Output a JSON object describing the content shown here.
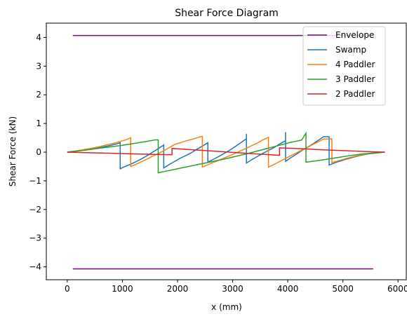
{
  "chart_data": {
    "type": "line",
    "title": "Shear Force Diagram",
    "xlabel": "x (mm)",
    "ylabel": "Shear Force (kN)",
    "xlim": [
      -380,
      6150
    ],
    "ylim": [
      -4.45,
      4.5
    ],
    "x_ticks": [
      0,
      1000,
      2000,
      3000,
      4000,
      5000,
      6000
    ],
    "x_tick_labels": [
      "0",
      "1000",
      "2000",
      "3000",
      "4000",
      "5000",
      "6000"
    ],
    "y_ticks": [
      -4,
      -3,
      -2,
      -1,
      0,
      1,
      2,
      3,
      4
    ],
    "y_tick_labels": [
      "−4",
      "−3",
      "−2",
      "−1",
      "0",
      "1",
      "2",
      "3",
      "4"
    ],
    "grid": false,
    "legend_position": "top-right",
    "series": [
      {
        "name": "Envelope",
        "color": "#800080",
        "segments": [
          [
            [
              100,
              4.07
            ],
            [
              5550,
              4.07
            ]
          ],
          [
            [
              100,
              -4.07
            ],
            [
              5550,
              -4.07
            ]
          ]
        ]
      },
      {
        "name": "Swamp",
        "color": "#1f77b4",
        "points": [
          [
            0,
            0
          ],
          [
            150,
            0.03
          ],
          [
            300,
            0.07
          ],
          [
            450,
            0.11
          ],
          [
            600,
            0.16
          ],
          [
            750,
            0.22
          ],
          [
            900,
            0.29
          ],
          [
            960,
            0.33
          ],
          [
            960,
            -0.58
          ],
          [
            1050,
            -0.5
          ],
          [
            1150,
            -0.42
          ],
          [
            1250,
            -0.33
          ],
          [
            1350,
            -0.23
          ],
          [
            1450,
            -0.12
          ],
          [
            1550,
            0
          ],
          [
            1650,
            0.12
          ],
          [
            1750,
            0.25
          ],
          [
            1750,
            -0.55
          ],
          [
            1850,
            -0.43
          ],
          [
            1950,
            -0.32
          ],
          [
            2050,
            -0.21
          ],
          [
            2150,
            -0.12
          ],
          [
            2250,
            -0.02
          ],
          [
            2350,
            0.1
          ],
          [
            2450,
            0.21
          ],
          [
            2550,
            0.33
          ],
          [
            2550,
            -0.35
          ],
          [
            2650,
            -0.25
          ],
          [
            2750,
            -0.15
          ],
          [
            2850,
            -0.04
          ],
          [
            2950,
            0.07
          ],
          [
            3050,
            0.2
          ],
          [
            3150,
            0.33
          ],
          [
            3250,
            0.47
          ],
          [
            3250,
            0.64
          ],
          [
            3250,
            -0.38
          ],
          [
            3350,
            -0.26
          ],
          [
            3450,
            -0.15
          ],
          [
            3550,
            -0.04
          ],
          [
            3650,
            0.06
          ],
          [
            3750,
            0.16
          ],
          [
            3850,
            0.28
          ],
          [
            3960,
            0.4
          ],
          [
            3960,
            0.7
          ],
          [
            3960,
            -0.32
          ],
          [
            4050,
            -0.2
          ],
          [
            4150,
            -0.08
          ],
          [
            4250,
            0.05
          ],
          [
            4350,
            0.16
          ],
          [
            4450,
            0.28
          ],
          [
            4550,
            0.41
          ],
          [
            4650,
            0.54
          ],
          [
            4750,
            0.54
          ],
          [
            4750,
            -0.45
          ],
          [
            4900,
            -0.34
          ],
          [
            5050,
            -0.25
          ],
          [
            5200,
            -0.17
          ],
          [
            5350,
            -0.1
          ],
          [
            5500,
            -0.05
          ],
          [
            5650,
            -0.02
          ],
          [
            5760,
            0
          ]
        ]
      },
      {
        "name": "4 Paddler",
        "color": "#ff7f0e",
        "points": [
          [
            0,
            0
          ],
          [
            150,
            0.04
          ],
          [
            300,
            0.09
          ],
          [
            450,
            0.14
          ],
          [
            600,
            0.2
          ],
          [
            750,
            0.27
          ],
          [
            900,
            0.34
          ],
          [
            1050,
            0.42
          ],
          [
            1150,
            0.5
          ],
          [
            1150,
            -0.5
          ],
          [
            1250,
            -0.42
          ],
          [
            1350,
            -0.33
          ],
          [
            1450,
            -0.24
          ],
          [
            1550,
            -0.14
          ],
          [
            1650,
            -0.05
          ],
          [
            1750,
            0.05
          ],
          [
            1850,
            0.16
          ],
          [
            1950,
            0.27
          ],
          [
            2050,
            0.33
          ],
          [
            2150,
            0.39
          ],
          [
            2250,
            0.44
          ],
          [
            2350,
            0.5
          ],
          [
            2450,
            0.55
          ],
          [
            2450,
            -0.52
          ],
          [
            2550,
            -0.44
          ],
          [
            2650,
            -0.36
          ],
          [
            2750,
            -0.28
          ],
          [
            2850,
            -0.2
          ],
          [
            2950,
            -0.12
          ],
          [
            3050,
            -0.04
          ],
          [
            3150,
            0.05
          ],
          [
            3250,
            0.14
          ],
          [
            3350,
            0.23
          ],
          [
            3450,
            0.32
          ],
          [
            3550,
            0.43
          ],
          [
            3650,
            0.52
          ],
          [
            3650,
            -0.52
          ],
          [
            3750,
            -0.43
          ],
          [
            3850,
            -0.33
          ],
          [
            3950,
            -0.23
          ],
          [
            4050,
            -0.13
          ],
          [
            4150,
            -0.03
          ],
          [
            4250,
            0.07
          ],
          [
            4350,
            0.16
          ],
          [
            4450,
            0.26
          ],
          [
            4550,
            0.36
          ],
          [
            4650,
            0.46
          ],
          [
            4800,
            0.46
          ],
          [
            4800,
            -0.37
          ],
          [
            4950,
            -0.28
          ],
          [
            5100,
            -0.2
          ],
          [
            5250,
            -0.13
          ],
          [
            5400,
            -0.07
          ],
          [
            5550,
            -0.03
          ],
          [
            5760,
            0
          ]
        ]
      },
      {
        "name": "3 Paddler",
        "color": "#2ca02c",
        "points": [
          [
            0,
            0
          ],
          [
            200,
            0.04
          ],
          [
            400,
            0.09
          ],
          [
            600,
            0.14
          ],
          [
            800,
            0.19
          ],
          [
            1000,
            0.24
          ],
          [
            1200,
            0.3
          ],
          [
            1400,
            0.36
          ],
          [
            1600,
            0.43
          ],
          [
            1650,
            0.43
          ],
          [
            1650,
            -0.72
          ],
          [
            1850,
            -0.64
          ],
          [
            2050,
            -0.56
          ],
          [
            2250,
            -0.48
          ],
          [
            2450,
            -0.4
          ],
          [
            2650,
            -0.32
          ],
          [
            2850,
            -0.24
          ],
          [
            3050,
            -0.15
          ],
          [
            3250,
            -0.06
          ],
          [
            3450,
            0.04
          ],
          [
            3650,
            0.14
          ],
          [
            3850,
            0.24
          ],
          [
            4050,
            0.34
          ],
          [
            4250,
            0.42
          ],
          [
            4330,
            0.66
          ],
          [
            4330,
            -0.35
          ],
          [
            4530,
            -0.3
          ],
          [
            4730,
            -0.24
          ],
          [
            4930,
            -0.18
          ],
          [
            5130,
            -0.12
          ],
          [
            5330,
            -0.07
          ],
          [
            5530,
            -0.03
          ],
          [
            5760,
            0
          ]
        ]
      },
      {
        "name": "2 Paddler",
        "color": "#d62728",
        "points": [
          [
            0,
            0
          ],
          [
            400,
            -0.02
          ],
          [
            800,
            -0.04
          ],
          [
            1200,
            -0.06
          ],
          [
            1600,
            -0.08
          ],
          [
            1900,
            -0.09
          ],
          [
            1900,
            0.13
          ],
          [
            2300,
            0.08
          ],
          [
            2700,
            0.03
          ],
          [
            3100,
            -0.02
          ],
          [
            3500,
            -0.07
          ],
          [
            3850,
            -0.11
          ],
          [
            3850,
            0.15
          ],
          [
            4250,
            0.12
          ],
          [
            4650,
            0.08
          ],
          [
            5050,
            0.05
          ],
          [
            5450,
            0.02
          ],
          [
            5760,
            0
          ]
        ]
      }
    ]
  }
}
